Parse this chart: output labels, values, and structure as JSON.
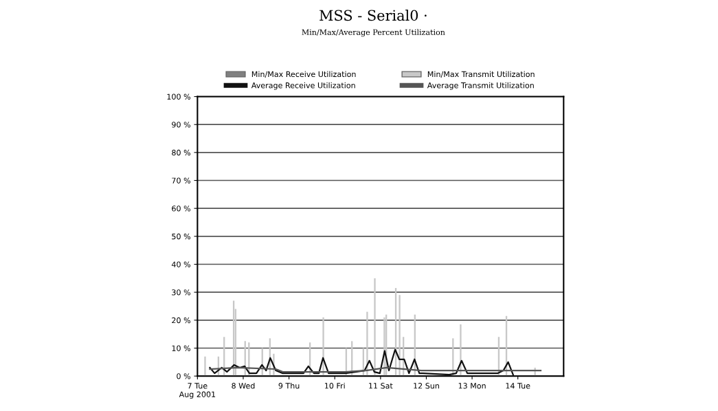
{
  "chart_data": {
    "type": "line",
    "title": "MSS - Serial0 ·",
    "subtitle": "Min/Max/Average Percent Utilization",
    "xlim": [
      "2001-08-07",
      "2001-08-15"
    ],
    "xticks": [
      {
        "value": "2001-08-07",
        "label": "7 Tue\nAug 2001"
      },
      {
        "value": "2001-08-08",
        "label": "8 Wed"
      },
      {
        "value": "2001-08-09",
        "label": "9 Thu"
      },
      {
        "value": "2001-08-10",
        "label": "10 Fri"
      },
      {
        "value": "2001-08-11",
        "label": "11 Sat"
      },
      {
        "value": "2001-08-12",
        "label": "12 Sun"
      },
      {
        "value": "2001-08-13",
        "label": "13 Mon"
      },
      {
        "value": "2001-08-14",
        "label": "14 Tue"
      }
    ],
    "ylim": [
      0,
      100
    ],
    "yticks": [
      {
        "value": 0,
        "label": "0 %"
      },
      {
        "value": 10,
        "label": "10 %"
      },
      {
        "value": 20,
        "label": "20 %"
      },
      {
        "value": 30,
        "label": "30 %"
      },
      {
        "value": 40,
        "label": "40 %"
      },
      {
        "value": 50,
        "label": "50 %"
      },
      {
        "value": 60,
        "label": "60 %"
      },
      {
        "value": 70,
        "label": "70 %"
      },
      {
        "value": 80,
        "label": "80 %"
      },
      {
        "value": 90,
        "label": "90 %"
      },
      {
        "value": 100,
        "label": "100 %"
      }
    ],
    "grid": "y",
    "legend": "top",
    "series": [
      {
        "name": "Min/Max Receive Utilization",
        "type": "bar",
        "color": "#808080"
      },
      {
        "name": "Min/Max Transmit Utilization",
        "type": "bar",
        "color": "#c8c8c8",
        "x": [
          "2001-08-07T04:00",
          "2001-08-07T11:00",
          "2001-08-07T14:00",
          "2001-08-07T19:00",
          "2001-08-07T20:00",
          "2001-08-08T01:00",
          "2001-08-08T03:00",
          "2001-08-08T10:00",
          "2001-08-08T14:00",
          "2001-08-08T16:00",
          "2001-08-09T11:00",
          "2001-08-09T18:00",
          "2001-08-10T06:00",
          "2001-08-10T09:00",
          "2001-08-10T15:00",
          "2001-08-10T17:00",
          "2001-08-10T21:00",
          "2001-08-11T02:00",
          "2001-08-11T03:00",
          "2001-08-11T08:00",
          "2001-08-11T10:00",
          "2001-08-11T12:00",
          "2001-08-11T18:00",
          "2001-08-12T14:00",
          "2001-08-12T18:00",
          "2001-08-13T14:00",
          "2001-08-13T18:00",
          "2001-08-14T09:00"
        ],
        "values": [
          7,
          7,
          14,
          27,
          24,
          12.5,
          12,
          10,
          13.5,
          8,
          12,
          21,
          10,
          12.5,
          10,
          23,
          35,
          21,
          22,
          31.5,
          29,
          14,
          22,
          13.5,
          18.5,
          14,
          21.5,
          3
        ]
      },
      {
        "name": "Average Receive Utilization",
        "color": "#111111",
        "x": [
          "2001-08-07T06:30",
          "2001-08-07T09:00",
          "2001-08-07T12:45",
          "2001-08-07T15:30",
          "2001-08-07T19:15",
          "2001-08-07T22:10",
          "2001-08-08T00:45",
          "2001-08-08T03:15",
          "2001-08-08T06:55",
          "2001-08-08T09:50",
          "2001-08-08T12:00",
          "2001-08-08T14:10",
          "2001-08-08T17:05",
          "2001-08-08T20:45",
          "2001-08-09T07:35",
          "2001-08-09T10:10",
          "2001-08-09T13:05",
          "2001-08-09T15:40",
          "2001-08-09T17:50",
          "2001-08-09T20:45",
          "2001-08-10T05:30",
          "2001-08-10T10:55",
          "2001-08-10T15:40",
          "2001-08-10T18:10",
          "2001-08-10T20:45",
          "2001-08-10T23:40",
          "2001-08-11T02:10",
          "2001-08-11T04:25",
          "2001-08-11T07:40",
          "2001-08-11T09:50",
          "2001-08-11T12:25",
          "2001-08-11T14:55",
          "2001-08-11T17:50",
          "2001-08-11T20:20",
          "2001-08-11T22:10",
          "2001-08-12T12:00",
          "2001-08-12T15:40",
          "2001-08-12T18:30",
          "2001-08-12T21:30",
          "2001-08-13T13:30",
          "2001-08-13T16:25",
          "2001-08-13T18:55",
          "2001-08-13T21:30"
        ],
        "values": [
          3,
          1,
          3,
          1.5,
          4,
          3,
          3.5,
          1,
          1,
          4,
          2,
          6.5,
          2,
          1,
          1,
          3.5,
          1,
          1,
          6.5,
          1,
          1,
          1.5,
          2,
          5.5,
          1.5,
          1,
          9,
          2,
          9.5,
          6,
          6,
          1,
          6,
          1,
          1,
          0.5,
          1,
          5.5,
          1,
          1,
          2,
          5,
          0.5
        ]
      },
      {
        "name": "Average Transmit Utilization",
        "color": "#555555",
        "x": [
          "2001-08-07T06:30",
          "2001-08-07T21:05",
          "2001-08-08T17:05",
          "2001-08-08T20:45",
          "2001-08-10T05:30",
          "2001-08-10T16:20",
          "2001-08-11T03:15",
          "2001-08-11T21:25",
          "2001-08-13T06:10",
          "2001-08-14T12:00"
        ],
        "values": [
          2.5,
          3,
          2.5,
          1.5,
          1.5,
          2,
          3,
          2,
          2,
          2
        ]
      }
    ]
  }
}
